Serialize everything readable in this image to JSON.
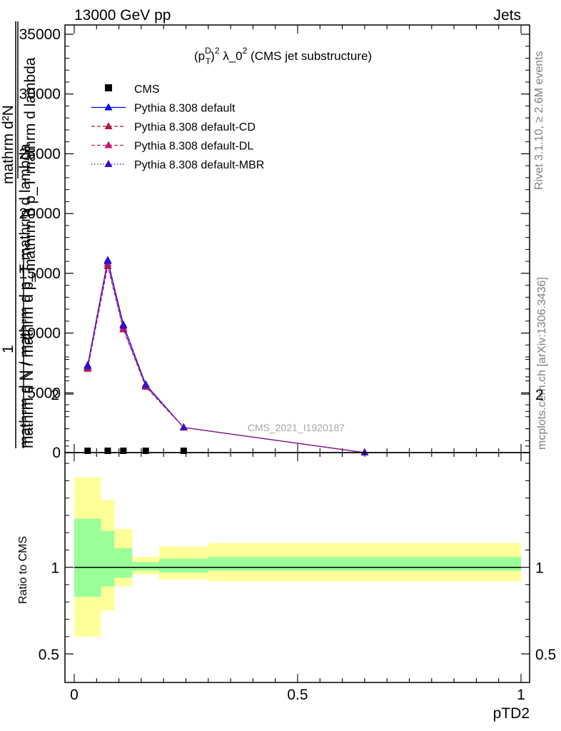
{
  "header": {
    "left": "13000 GeV pp",
    "right": "Jets"
  },
  "side_labels": {
    "rivet": "Rivet 3.1.10, ≥ 2.6M events",
    "mcplots": "mcplots.cern.ch [arXiv:1306.3436]"
  },
  "watermark": "CMS_2021_I1920187",
  "chart_data": [
    {
      "type": "line",
      "title": "(p_T^D)^2 λ_0^2 (CMS jet substructure)",
      "title_parts": {
        "base1": "(p",
        "sup_d": "D",
        "sub_t": "T",
        "sup_2": "2",
        "lam": ") λ_0",
        "sup_lam": "2",
        "rest": " (CMS jet substructure)"
      },
      "ylabel": {
        "num_top": "mathrm d²N",
        "den_top": "mathrm d p_T mathrm d lambda",
        "one": "1",
        "num_bottom": "mathrm d N / mathrm d p_T",
        "den_bottom": "mathrm d N / mathrm d p_T mathrm d lambda"
      },
      "xlim": [
        0,
        1
      ],
      "ylim": [
        0,
        35000
      ],
      "yticks": [
        0,
        5000,
        10000,
        15000,
        20000,
        25000,
        30000,
        35000
      ],
      "ytick_labels": [
        "0",
        "5000",
        "10000",
        "15000",
        "20000",
        "25000",
        "30000",
        "35000"
      ],
      "legend_position": "top-left",
      "series": [
        {
          "name": "CMS",
          "style": "marker-only",
          "color": "#000000",
          "marker": "square",
          "x": [
            0.03,
            0.075,
            0.11,
            0.16,
            0.245
          ],
          "y": [
            0,
            0,
            0,
            0,
            0
          ]
        },
        {
          "name": "Pythia 8.308 default",
          "style": "solid",
          "color": "#0000ff",
          "marker": "triangle",
          "x": [
            0.03,
            0.075,
            0.11,
            0.16,
            0.245,
            0.65
          ],
          "y": [
            7300,
            16100,
            10700,
            5700,
            2100,
            0
          ]
        },
        {
          "name": "Pythia 8.308 default-CD",
          "style": "dashed",
          "color": "#b0173f",
          "marker": "triangle",
          "x": [
            0.03,
            0.075,
            0.11,
            0.16,
            0.245,
            0.65
          ],
          "y": [
            7000,
            15600,
            10300,
            5500,
            2100,
            0
          ]
        },
        {
          "name": "Pythia 8.308 default-DL",
          "style": "dashed",
          "color": "#c21a6a",
          "marker": "triangle",
          "x": [
            0.03,
            0.075,
            0.11,
            0.16,
            0.245,
            0.65
          ],
          "y": [
            7100,
            15800,
            10400,
            5600,
            2100,
            0
          ]
        },
        {
          "name": "Pythia 8.308 default-MBR",
          "style": "dotted",
          "color": "#3a0fbf",
          "marker": "triangle",
          "x": [
            0.03,
            0.075,
            0.11,
            0.16,
            0.245,
            0.65
          ],
          "y": [
            7200,
            16000,
            10600,
            5650,
            2100,
            0
          ]
        }
      ]
    },
    {
      "type": "area",
      "ylabel": "Ratio to CMS",
      "xlabel": "pTD2",
      "xlim": [
        0,
        1
      ],
      "ylim": [
        0.4,
        2.25
      ],
      "xticks": [
        0,
        0.5,
        1
      ],
      "xtick_labels": [
        "0",
        "0.5",
        "1"
      ],
      "yticks": [
        0.5,
        1,
        2
      ],
      "ytick_labels": [
        "0.5",
        "1",
        "2"
      ],
      "reference_line": 1,
      "bins": [
        {
          "lo": 0.0,
          "hi": 0.06,
          "inner": [
            0.83,
            1.28
          ],
          "outer": [
            0.6,
            1.52
          ]
        },
        {
          "lo": 0.06,
          "hi": 0.09,
          "inner": [
            0.89,
            1.21
          ],
          "outer": [
            0.75,
            1.39
          ]
        },
        {
          "lo": 0.09,
          "hi": 0.13,
          "inner": [
            0.94,
            1.11
          ],
          "outer": [
            0.89,
            1.22
          ]
        },
        {
          "lo": 0.13,
          "hi": 0.19,
          "inner": [
            0.98,
            1.03
          ],
          "outer": [
            0.96,
            1.06
          ]
        },
        {
          "lo": 0.19,
          "hi": 0.3,
          "inner": [
            0.97,
            1.05
          ],
          "outer": [
            0.93,
            1.12
          ]
        },
        {
          "lo": 0.3,
          "hi": 1.0,
          "inner": [
            0.98,
            1.06
          ],
          "outer": [
            0.92,
            1.14
          ]
        }
      ]
    }
  ]
}
